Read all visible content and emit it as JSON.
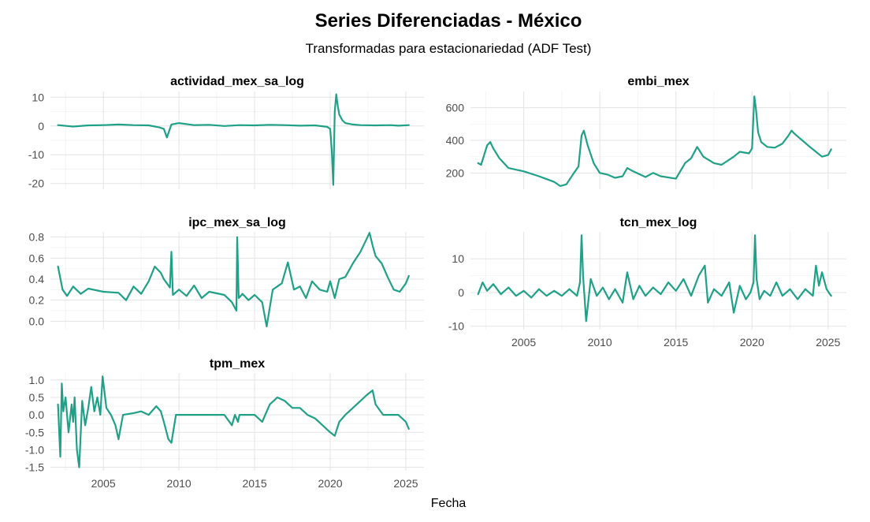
{
  "title": "Series Diferenciadas - México",
  "subtitle": "Transformadas para estacionariedad (ADF Test)",
  "xlabel": "Fecha",
  "line_color": "#1fa187",
  "grid": true,
  "chart_data": [
    {
      "type": "line",
      "title": "actividad_mex_sa_log",
      "ylim": [
        -22,
        12
      ],
      "xlim": [
        2001.5,
        2026.2
      ],
      "yticks": [
        10,
        0,
        -10,
        -20
      ],
      "ytick_labels": [
        "10",
        "0",
        "-10",
        "-20"
      ],
      "xticks": [
        2005,
        2010,
        2015,
        2020,
        2025
      ],
      "xtick_labels": [],
      "series": [
        {
          "x": [
            2002.0,
            2003.0,
            2004.0,
            2005.0,
            2006.0,
            2007.0,
            2008.0,
            2008.7,
            2009.0,
            2009.2,
            2009.5,
            2010.0,
            2011.0,
            2012.0,
            2013.0,
            2014.0,
            2015.0,
            2016.0,
            2017.0,
            2018.0,
            2019.0,
            2019.8,
            2020.0,
            2020.1,
            2020.2,
            2020.3,
            2020.4,
            2020.5,
            2020.6,
            2020.8,
            2021.0,
            2021.5,
            2022.0,
            2023.0,
            2024.0,
            2024.5,
            2025.2
          ],
          "y": [
            0.3,
            -0.2,
            0.2,
            0.3,
            0.5,
            0.3,
            0.2,
            -0.5,
            -1.0,
            -4.0,
            0.5,
            1.0,
            0.3,
            0.4,
            0.0,
            0.3,
            0.2,
            0.4,
            0.3,
            0.1,
            0.2,
            -0.3,
            -1.0,
            -8.0,
            -20.5,
            5.0,
            11.0,
            7.0,
            4.0,
            2.0,
            1.0,
            0.5,
            0.3,
            0.2,
            0.3,
            0.1,
            0.3
          ]
        }
      ]
    },
    {
      "type": "line",
      "title": "embi_mex",
      "ylim": [
        100,
        700
      ],
      "xlim": [
        2001.5,
        2026.2
      ],
      "yticks": [
        600,
        400,
        200
      ],
      "ytick_labels": [
        "600",
        "400",
        "200"
      ],
      "xticks": [
        2005,
        2010,
        2015,
        2020,
        2025
      ],
      "xtick_labels": [],
      "series": [
        {
          "x": [
            2002.0,
            2002.2,
            2002.6,
            2002.8,
            2003.0,
            2003.4,
            2004.0,
            2005.0,
            2006.0,
            2007.0,
            2007.4,
            2007.8,
            2008.3,
            2008.6,
            2008.8,
            2008.95,
            2009.2,
            2009.6,
            2010.0,
            2010.5,
            2011.0,
            2011.5,
            2011.8,
            2012.2,
            2013.0,
            2013.5,
            2014.0,
            2015.0,
            2015.6,
            2016.0,
            2016.4,
            2016.8,
            2017.5,
            2018.0,
            2018.8,
            2019.2,
            2019.8,
            2020.0,
            2020.15,
            2020.25,
            2020.4,
            2020.6,
            2021.0,
            2021.5,
            2022.0,
            2022.4,
            2022.6,
            2022.8,
            2023.3,
            2023.8,
            2024.2,
            2024.6,
            2025.0,
            2025.2
          ],
          "y": [
            260,
            250,
            370,
            390,
            350,
            290,
            230,
            210,
            180,
            145,
            120,
            130,
            200,
            240,
            430,
            460,
            370,
            260,
            200,
            190,
            170,
            180,
            230,
            210,
            175,
            200,
            180,
            165,
            260,
            290,
            360,
            300,
            260,
            250,
            300,
            330,
            320,
            350,
            670,
            600,
            450,
            390,
            360,
            355,
            380,
            430,
            460,
            440,
            400,
            360,
            330,
            300,
            310,
            345
          ]
        }
      ]
    },
    {
      "type": "line",
      "title": "ipc_mex_sa_log",
      "ylim": [
        -0.08,
        0.85
      ],
      "xlim": [
        2001.5,
        2026.2
      ],
      "yticks": [
        0.8,
        0.6,
        0.4,
        0.2,
        0.0
      ],
      "ytick_labels": [
        "0.8",
        "0.6",
        "0.4",
        "0.2",
        "0.0"
      ],
      "xticks": [
        2005,
        2010,
        2015,
        2020,
        2025
      ],
      "xtick_labels": [],
      "series": [
        {
          "x": [
            2002.0,
            2002.3,
            2002.6,
            2003.0,
            2003.5,
            2004.0,
            2005.0,
            2006.0,
            2006.5,
            2007.0,
            2007.5,
            2008.0,
            2008.4,
            2008.8,
            2009.0,
            2009.4,
            2009.5,
            2009.6,
            2010.0,
            2010.5,
            2011.0,
            2011.5,
            2012.0,
            2013.0,
            2013.5,
            2013.8,
            2013.85,
            2013.95,
            2014.2,
            2014.6,
            2015.0,
            2015.5,
            2015.8,
            2016.2,
            2016.8,
            2017.2,
            2017.6,
            2018.0,
            2018.4,
            2018.8,
            2019.3,
            2019.8,
            2020.0,
            2020.3,
            2020.6,
            2021.0,
            2021.5,
            2022.0,
            2022.4,
            2022.6,
            2022.8,
            2023.0,
            2023.4,
            2023.8,
            2024.2,
            2024.6,
            2025.0,
            2025.2
          ],
          "y": [
            0.52,
            0.3,
            0.24,
            0.33,
            0.26,
            0.31,
            0.28,
            0.27,
            0.2,
            0.33,
            0.26,
            0.38,
            0.52,
            0.46,
            0.4,
            0.32,
            0.66,
            0.25,
            0.3,
            0.24,
            0.34,
            0.22,
            0.28,
            0.25,
            0.18,
            0.1,
            0.8,
            0.22,
            0.26,
            0.2,
            0.25,
            0.18,
            -0.05,
            0.3,
            0.36,
            0.56,
            0.3,
            0.33,
            0.22,
            0.38,
            0.3,
            0.28,
            0.38,
            0.22,
            0.4,
            0.42,
            0.55,
            0.66,
            0.78,
            0.84,
            0.72,
            0.62,
            0.55,
            0.42,
            0.3,
            0.28,
            0.36,
            0.43
          ]
        }
      ]
    },
    {
      "type": "line",
      "title": "tcn_mex_log",
      "ylim": [
        -11,
        18
      ],
      "xlim": [
        2001.5,
        2026.2
      ],
      "yticks": [
        10,
        0,
        -10
      ],
      "ytick_labels": [
        "10",
        "0",
        "-10"
      ],
      "xticks": [
        2005,
        2010,
        2015,
        2020,
        2025
      ],
      "xtick_labels": [
        "2005",
        "2010",
        "2015",
        "2020",
        "2025"
      ],
      "series": [
        {
          "x": [
            2002.0,
            2002.3,
            2002.6,
            2003.0,
            2003.5,
            2004.0,
            2004.5,
            2005.0,
            2005.5,
            2006.0,
            2006.5,
            2007.0,
            2007.5,
            2008.0,
            2008.5,
            2008.7,
            2008.8,
            2008.9,
            2009.1,
            2009.4,
            2009.8,
            2010.2,
            2010.6,
            2011.0,
            2011.5,
            2011.8,
            2012.2,
            2012.6,
            2013.0,
            2013.5,
            2014.0,
            2014.5,
            2015.0,
            2015.5,
            2016.0,
            2016.5,
            2016.9,
            2017.1,
            2017.5,
            2018.0,
            2018.5,
            2018.8,
            2019.2,
            2019.6,
            2019.9,
            2020.1,
            2020.2,
            2020.3,
            2020.5,
            2020.8,
            2021.2,
            2021.6,
            2022.0,
            2022.5,
            2023.0,
            2023.5,
            2024.0,
            2024.2,
            2024.4,
            2024.6,
            2024.9,
            2025.2
          ],
          "y": [
            -0.5,
            3.0,
            0.5,
            2.5,
            -0.5,
            1.5,
            -1.0,
            0.5,
            -1.5,
            1.0,
            -1.0,
            0.5,
            -1.0,
            1.0,
            -1.0,
            3.0,
            17.0,
            5.0,
            -8.5,
            4.0,
            -1.0,
            1.5,
            -2.0,
            1.0,
            -3.0,
            6.0,
            -2.0,
            2.0,
            -1.0,
            1.5,
            -0.5,
            3.0,
            0.5,
            4.0,
            -1.0,
            5.0,
            8.0,
            -3.0,
            1.0,
            -1.0,
            3.0,
            -6.0,
            2.0,
            -2.0,
            0.0,
            3.0,
            17.0,
            4.0,
            -2.0,
            0.5,
            -1.0,
            3.0,
            -1.0,
            1.0,
            -2.0,
            1.0,
            -1.0,
            8.0,
            2.0,
            6.0,
            1.0,
            -1.0
          ]
        }
      ]
    },
    {
      "type": "line",
      "title": "tpm_mex",
      "ylim": [
        -1.6,
        1.2
      ],
      "xlim": [
        2001.5,
        2026.2
      ],
      "yticks": [
        1.0,
        0.5,
        0.0,
        -0.5,
        -1.0,
        -1.5
      ],
      "ytick_labels": [
        "1.0",
        "0.5",
        "0.0",
        "-0.5",
        "-1.0",
        "-1.5"
      ],
      "xticks": [
        2005,
        2010,
        2015,
        2020,
        2025
      ],
      "xtick_labels": [
        "2005",
        "2010",
        "2015",
        "2020",
        "2025"
      ],
      "series": [
        {
          "x": [
            2002.0,
            2002.15,
            2002.25,
            2002.35,
            2002.5,
            2002.7,
            2002.9,
            2003.0,
            2003.1,
            2003.25,
            2003.4,
            2003.6,
            2003.8,
            2004.0,
            2004.2,
            2004.4,
            2004.6,
            2004.8,
            2004.95,
            2005.2,
            2005.5,
            2005.8,
            2006.0,
            2006.3,
            2007.0,
            2007.5,
            2008.0,
            2008.5,
            2008.8,
            2009.0,
            2009.3,
            2009.5,
            2009.8,
            2010.0,
            2011.0,
            2012.0,
            2013.0,
            2013.5,
            2013.7,
            2013.9,
            2014.0,
            2014.5,
            2015.0,
            2015.5,
            2016.0,
            2016.5,
            2017.0,
            2017.5,
            2018.0,
            2018.5,
            2019.0,
            2019.5,
            2020.0,
            2020.3,
            2020.6,
            2021.0,
            2021.5,
            2022.0,
            2022.5,
            2022.8,
            2023.0,
            2023.5,
            2024.0,
            2024.5,
            2025.0,
            2025.2
          ],
          "y": [
            0.3,
            -1.2,
            0.9,
            0.1,
            0.5,
            -0.5,
            0.3,
            -0.2,
            0.5,
            -1.0,
            -1.5,
            0.4,
            -0.3,
            0.2,
            0.8,
            0.1,
            0.5,
            0.0,
            1.1,
            0.2,
            0.0,
            -0.3,
            -0.7,
            0.0,
            0.05,
            0.1,
            0.0,
            0.25,
            0.1,
            -0.2,
            -0.7,
            -0.8,
            0.0,
            0.0,
            0.0,
            0.0,
            0.0,
            -0.3,
            0.0,
            -0.2,
            0.0,
            0.0,
            0.0,
            -0.2,
            0.3,
            0.5,
            0.4,
            0.2,
            0.2,
            0.0,
            -0.1,
            -0.3,
            -0.5,
            -0.6,
            -0.2,
            0.0,
            0.2,
            0.4,
            0.6,
            0.7,
            0.3,
            0.0,
            0.0,
            0.0,
            -0.2,
            -0.4
          ]
        }
      ]
    }
  ]
}
